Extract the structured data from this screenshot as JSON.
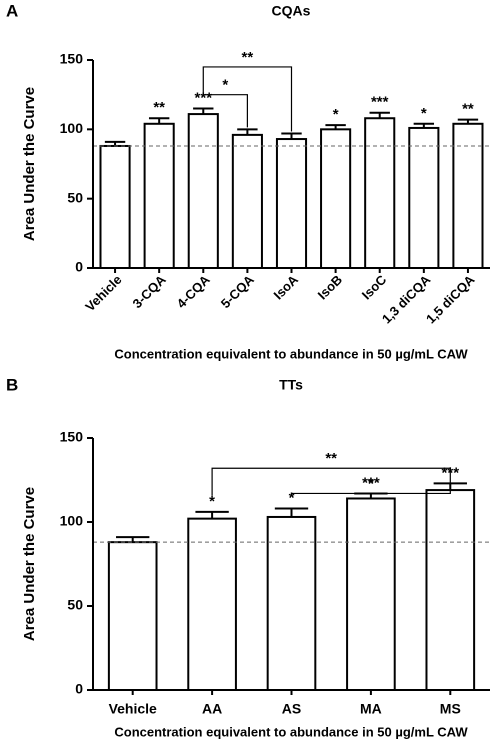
{
  "chart_data": [
    {
      "type": "bar",
      "panel": "A",
      "title": "CQAs",
      "ylabel": "Area Under the Curve",
      "xlabel": "Concentration equivalent to abundance in 50 µg/mL CAW",
      "categories": [
        "Vehicle",
        "3-CQA",
        "4-CQA",
        "5-CQA",
        "IsoA",
        "IsoB",
        "IsoC",
        "1,3 diCQA",
        "1,5 diCQA"
      ],
      "values": [
        88,
        104,
        111,
        96,
        93,
        100,
        108,
        101,
        104
      ],
      "errors": [
        3,
        4,
        4,
        4,
        4,
        3,
        4,
        3,
        3
      ],
      "significance": [
        null,
        "**",
        "***",
        null,
        null,
        "*",
        "***",
        "*",
        "**"
      ],
      "brackets": [
        {
          "from": "4-CQA",
          "to": "5-CQA",
          "label": "*",
          "y": 125
        },
        {
          "from": "4-CQA",
          "to": "IsoA",
          "label": "**",
          "y": 145
        }
      ],
      "reference_line": 88,
      "color": "#ffffff",
      "ylim": [
        0,
        150
      ],
      "yticks": [
        0,
        50,
        100,
        150
      ]
    },
    {
      "type": "bar",
      "panel": "B",
      "title": "TTs",
      "ylabel": "Area Under the Curve",
      "xlabel": "Concentration equivalent to abundance in 50 µg/mL CAW",
      "categories": [
        "Vehicle",
        "AA",
        "AS",
        "MA",
        "MS"
      ],
      "values": [
        88,
        102,
        103,
        114,
        119
      ],
      "errors": [
        3,
        4,
        5,
        3,
        4
      ],
      "significance": [
        null,
        "*",
        "*",
        "***",
        "***"
      ],
      "brackets": [
        {
          "from": "AA",
          "to": "MS",
          "label": "**",
          "y": 132
        },
        {
          "from": "AS",
          "to": "MS",
          "label": "*",
          "y": 117
        }
      ],
      "reference_line": 88,
      "color": "#ffffff",
      "ylim": [
        0,
        150
      ],
      "yticks": [
        0,
        50,
        100,
        150
      ]
    }
  ]
}
